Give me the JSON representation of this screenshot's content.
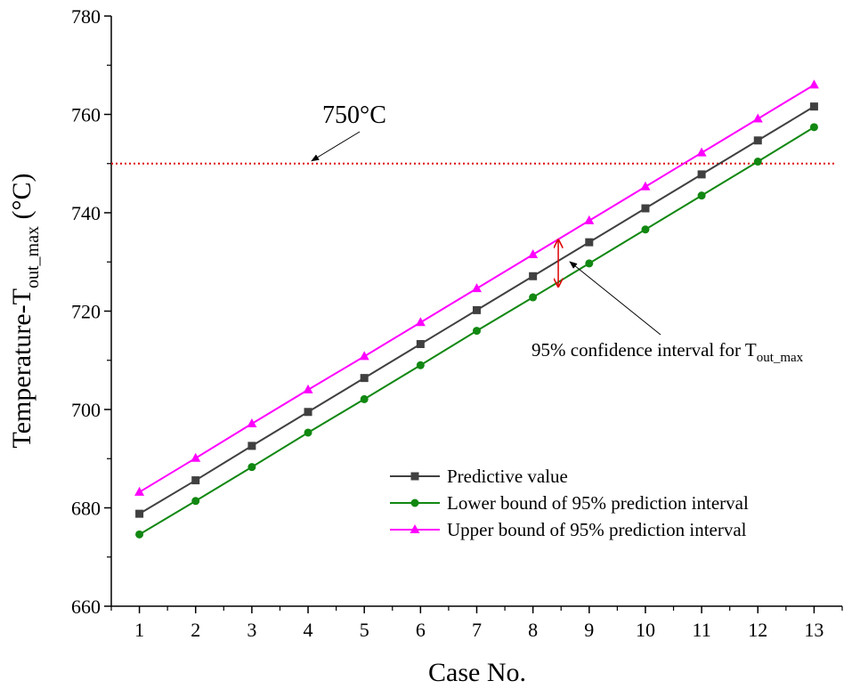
{
  "chart_data": {
    "type": "line",
    "xlabel": "Case No.",
    "ylabel": {
      "main": "Temperature-T",
      "sub": "out_max",
      "unit": " (°C)"
    },
    "x": [
      1,
      2,
      3,
      4,
      5,
      6,
      7,
      8,
      9,
      10,
      11,
      12,
      13
    ],
    "xlim": [
      0.5,
      13.5
    ],
    "ylim": [
      660,
      780
    ],
    "yticks": [
      660,
      680,
      700,
      720,
      740,
      760,
      780
    ],
    "grid": false,
    "legend_position": "lower-right",
    "series": [
      {
        "name": "Predictive value",
        "marker": "square",
        "color": "#404040",
        "values": [
          678.8,
          685.6,
          692.6,
          699.5,
          706.4,
          713.3,
          720.2,
          727.1,
          734.0,
          740.9,
          747.8,
          754.7,
          761.6
        ]
      },
      {
        "name": "Lower bound of 95% prediction interval",
        "marker": "circle",
        "color": "#118811",
        "values": [
          674.6,
          681.4,
          688.3,
          695.3,
          702.1,
          709.0,
          716.0,
          722.8,
          729.7,
          736.6,
          743.5,
          750.4,
          757.4
        ]
      },
      {
        "name": "Upper bound of 95% prediction interval",
        "marker": "triangle",
        "color": "#ff00ff",
        "values": [
          683.2,
          690.1,
          697.1,
          704.0,
          710.8,
          717.7,
          724.6,
          731.5,
          738.4,
          745.3,
          752.2,
          759.1,
          766.0
        ]
      }
    ],
    "threshold": {
      "value": 750,
      "label": "750°C",
      "color": "#dd0000"
    },
    "annotation": {
      "text": "95% confidence interval for T",
      "sub": "out_max",
      "x": 8.45,
      "y_low": 725.0,
      "y_high": 734.5
    }
  }
}
